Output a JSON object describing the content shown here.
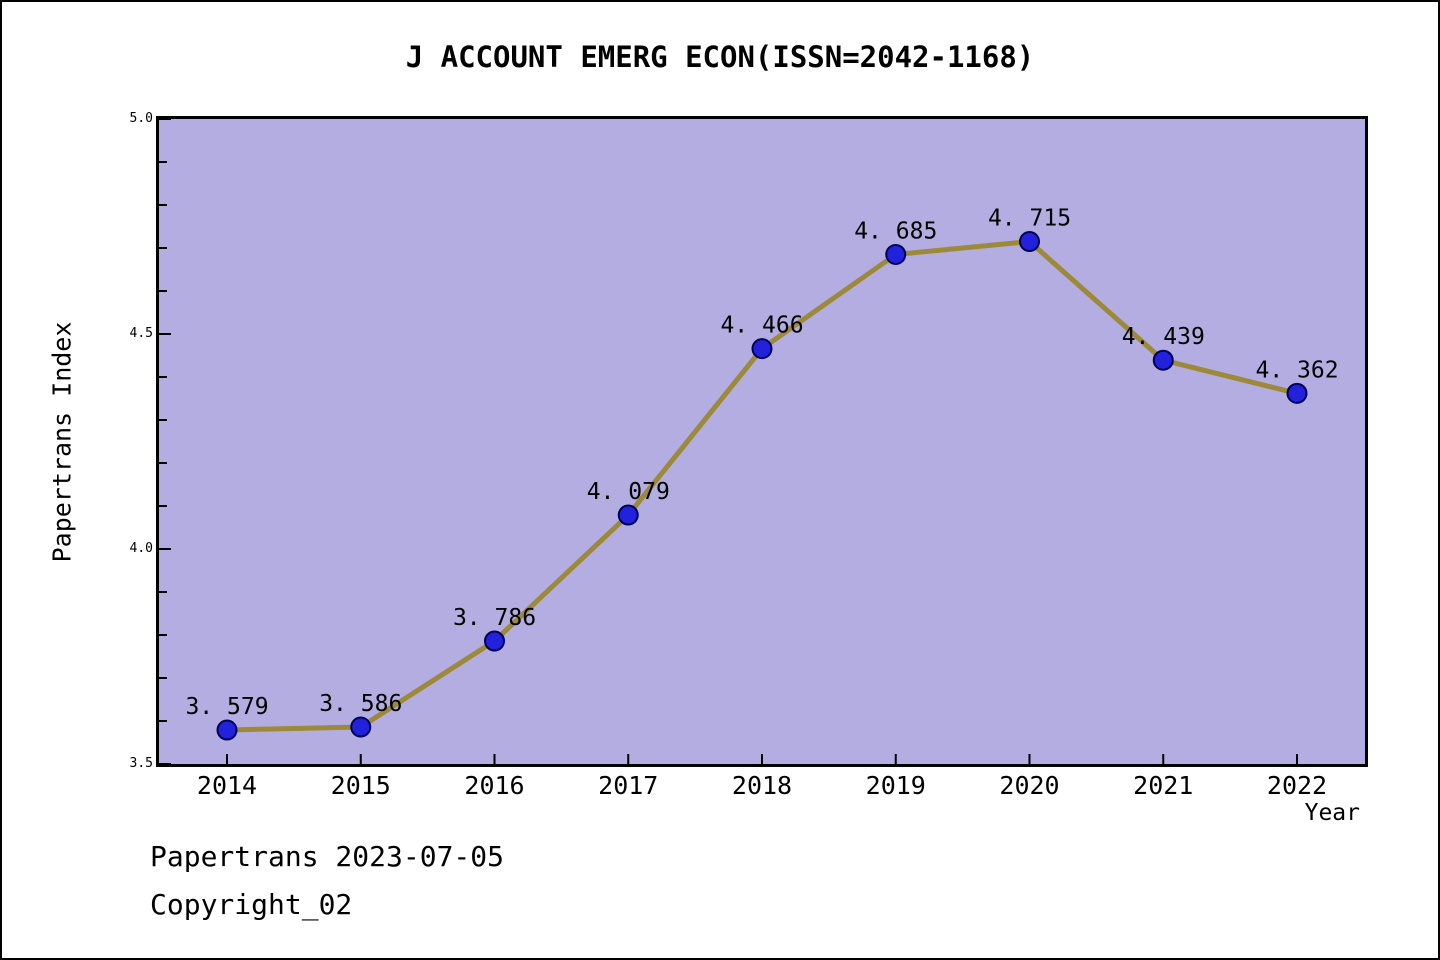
{
  "chart_data": {
    "type": "line",
    "title": "J ACCOUNT EMERG ECON(ISSN=2042-1168)",
    "xlabel": "Year",
    "ylabel": "Papertrans Index",
    "categories": [
      "2014",
      "2015",
      "2016",
      "2017",
      "2018",
      "2019",
      "2020",
      "2021",
      "2022"
    ],
    "values": [
      3.579,
      3.586,
      3.786,
      4.079,
      4.466,
      4.685,
      4.715,
      4.439,
      4.362
    ],
    "point_labels": [
      "3. 579",
      "3. 586",
      "3. 786",
      "4. 079",
      "4. 466",
      "4. 685",
      "4. 715",
      "4. 439",
      "4. 362"
    ],
    "ylim": [
      3.5,
      5.0
    ],
    "ytick_values": [
      3.5,
      4.0,
      4.5,
      5.0
    ],
    "ytick_labels": [
      "3.5",
      "4.0",
      "4.5",
      "5.0"
    ],
    "minor_ytick_step": 0.1,
    "grid": false,
    "legend": null,
    "colors": {
      "plot_bg": "#b4ade2",
      "line": "#9c8a38",
      "marker_fill": "#2222dd",
      "marker_edge": "#000055",
      "text": "#000000",
      "frame": "#000000"
    }
  },
  "footer": {
    "line1": "Papertrans 2023-07-05",
    "line2": "Copyright_02"
  }
}
